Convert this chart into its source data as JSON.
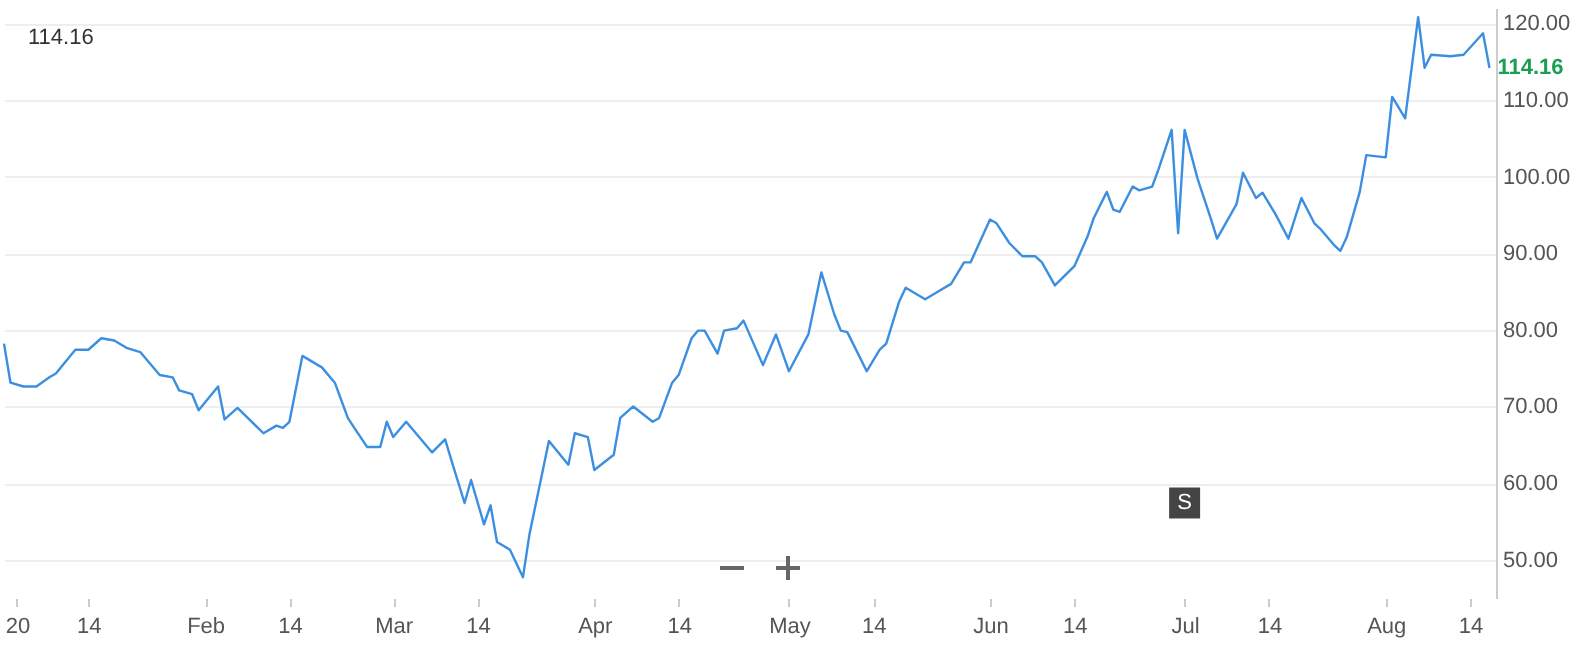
{
  "chart_data": {
    "type": "line",
    "x": [
      "--01-01",
      "--01-02",
      "--01-04",
      "--01-06",
      "--01-08",
      "--01-09",
      "--01-12",
      "--01-14",
      "--01-16",
      "--01-18",
      "--01-20",
      "--01-22",
      "--01-25",
      "--01-27",
      "--01-28",
      "--01-30",
      "--01-31",
      "--02-03",
      "--02-04",
      "--02-06",
      "--02-10",
      "--02-12",
      "--02-13",
      "--02-14",
      "--02-16",
      "--02-19",
      "--02-21",
      "--02-23",
      "--02-24",
      "--02-26",
      "--02-28",
      "--02-29",
      "--03-01",
      "--03-03",
      "--03-07",
      "--03-09",
      "--03-10",
      "--03-12",
      "--03-13",
      "--03-15",
      "--03-16",
      "--03-17",
      "--03-19",
      "--03-21",
      "--03-22",
      "--03-25",
      "--03-28",
      "--03-29",
      "--03-31",
      "--04-01",
      "--04-04",
      "--04-05",
      "--04-07",
      "--04-10",
      "--04-11",
      "--04-13",
      "--04-14",
      "--04-16",
      "--04-17",
      "--04-18",
      "--04-20",
      "--04-21",
      "--04-23",
      "--04-24",
      "--04-27",
      "--04-29",
      "--05-01",
      "--05-04",
      "--05-06",
      "--05-08",
      "--05-09",
      "--05-10",
      "--05-13",
      "--05-15",
      "--05-16",
      "--05-18",
      "--05-19",
      "--05-22",
      "--05-24",
      "--05-26",
      "--05-28",
      "--05-29",
      "--06-01",
      "--06-02",
      "--06-04",
      "--06-06",
      "--06-08",
      "--06-09",
      "--06-11",
      "--06-14",
      "--06-16",
      "--06-17",
      "--06-19",
      "--06-20",
      "--06-21",
      "--06-23",
      "--06-24",
      "--06-26",
      "--06-27",
      "--06-29",
      "--06-30",
      "--07-01",
      "--07-03",
      "--07-05",
      "--07-06",
      "--07-09",
      "--07-10",
      "--07-12",
      "--07-13",
      "--07-15",
      "--07-17",
      "--07-19",
      "--07-21",
      "--07-22",
      "--07-24",
      "--07-25",
      "--07-26",
      "--07-28",
      "--07-29",
      "--08-01",
      "--08-02",
      "--08-04",
      "--08-06",
      "--08-07",
      "--08-08",
      "--08-11",
      "--08-13",
      "--08-16",
      "--08-17"
    ],
    "series": [
      {
        "color": "#3b8fe0",
        "values": [
          78.2,
          73.1,
          72.6,
          72.6,
          73.8,
          74.3,
          77.4,
          77.4,
          78.9,
          78.6,
          77.6,
          77.1,
          74.1,
          73.8,
          72.1,
          71.6,
          69.5,
          72.6,
          68.3,
          69.8,
          66.5,
          67.5,
          67.2,
          68.0,
          76.6,
          75.1,
          73.1,
          68.5,
          67.2,
          64.7,
          64.7,
          68.0,
          66.0,
          68.0,
          64.0,
          65.7,
          62.9,
          57.4,
          60.4,
          54.6,
          57.1,
          52.3,
          51.3,
          47.7,
          53.3,
          65.5,
          62.4,
          66.5,
          66.0,
          61.7,
          63.7,
          68.5,
          70.0,
          68.0,
          68.5,
          73.1,
          74.1,
          78.9,
          79.9,
          79.9,
          76.9,
          79.9,
          80.2,
          81.2,
          75.4,
          79.4,
          74.6,
          79.4,
          87.5,
          82.0,
          79.9,
          79.7,
          74.6,
          77.4,
          78.2,
          83.7,
          85.5,
          84.0,
          85.0,
          86.0,
          88.8,
          88.8,
          94.4,
          93.9,
          91.3,
          89.6,
          89.6,
          88.8,
          85.8,
          88.3,
          92.1,
          94.6,
          98.0,
          95.7,
          95.4,
          98.7,
          98.2,
          98.7,
          101.0,
          106.1,
          92.6,
          106.1,
          99.7,
          94.6,
          91.9,
          96.4,
          100.5,
          97.2,
          97.9,
          95.1,
          91.9,
          97.2,
          93.9,
          93.1,
          91.1,
          90.3,
          92.1,
          98.0,
          102.8,
          102.5,
          110.4,
          107.6,
          120.8,
          114.2,
          115.9,
          115.7,
          115.9,
          118.7,
          114.16
        ]
      }
    ],
    "xlim": [
      "--01-01",
      "--08-18"
    ],
    "xticks": [
      {
        "value": "--01-03",
        "label": "20"
      },
      {
        "value": "--01-14",
        "label": "14"
      },
      {
        "value": "--02-01",
        "label": "Feb"
      },
      {
        "value": "--02-14",
        "label": "14"
      },
      {
        "value": "--03-01",
        "label": "Mar"
      },
      {
        "value": "--03-14",
        "label": "14"
      },
      {
        "value": "--04-01",
        "label": "Apr"
      },
      {
        "value": "--04-14",
        "label": "14"
      },
      {
        "value": "--05-01",
        "label": "May"
      },
      {
        "value": "--05-14",
        "label": "14"
      },
      {
        "value": "--06-01",
        "label": "Jun"
      },
      {
        "value": "--06-14",
        "label": "14"
      },
      {
        "value": "--07-01",
        "label": "Jul"
      },
      {
        "value": "--07-14",
        "label": "14"
      },
      {
        "value": "--08-01",
        "label": "Aug"
      },
      {
        "value": "--08-14",
        "label": "14"
      }
    ],
    "ylim": [
      45,
      122
    ],
    "yticks": [
      {
        "value": 50,
        "label": "50.00"
      },
      {
        "value": 60,
        "label": "60.00"
      },
      {
        "value": 70,
        "label": "70.00"
      },
      {
        "value": 80,
        "label": "80.00"
      },
      {
        "value": 90,
        "label": "90.00"
      },
      {
        "value": 100,
        "label": "100.00"
      },
      {
        "value": 110,
        "label": "110.00"
      },
      {
        "value": 120,
        "label": "120.00"
      }
    ],
    "grid": "y",
    "annotations": [
      {
        "text": "114.16",
        "x": "--08-17",
        "y": 114.16
      },
      "114.16",
      {
        "text": "S",
        "x": "--07-01",
        "y": 57.4
      }
    ]
  }
}
